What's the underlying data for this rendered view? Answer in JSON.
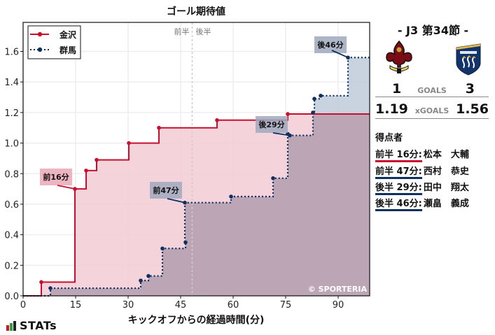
{
  "chart_title": "ゴール期待値",
  "half_labels": {
    "first": "前半",
    "second": "後半"
  },
  "watermark": "© SPORTERIA",
  "xlabel": "キックオフからの経過時間(分)",
  "brand": "STATs",
  "match": {
    "round": "- J3 第34節 -",
    "home": {
      "name": "金沢",
      "crest": "kanazawa-crest",
      "goals": "1",
      "xg": "1.19",
      "color": "#c8102e"
    },
    "away": {
      "name": "群馬",
      "crest": "gunma-crest",
      "goals": "3",
      "xg": "1.56",
      "color": "#0d3060"
    },
    "goals_label": "GOALS",
    "xgoals_label": "xGOALS"
  },
  "scorers": {
    "title": "得点者",
    "list": [
      {
        "minute": "前半 16分:",
        "name": "松本　大輔",
        "team": "home"
      },
      {
        "minute": "前半 47分:",
        "name": "西村　恭史",
        "team": "away"
      },
      {
        "minute": "後半 29分:",
        "name": "田中　翔太",
        "team": "away"
      },
      {
        "minute": "後半 46分:",
        "name": "瀬畠　義成",
        "team": "away"
      }
    ]
  },
  "chart_data": {
    "type": "line",
    "step": true,
    "title": "ゴール期待値",
    "xlabel": "キックオフからの経過時間(分)",
    "ylabel": "",
    "xlim": [
      0,
      99
    ],
    "ylim": [
      0,
      1.79
    ],
    "xticks": [
      0,
      15,
      30,
      45,
      60,
      75,
      90
    ],
    "yticks": [
      0.0,
      0.2,
      0.4,
      0.6,
      0.8,
      1.0,
      1.2,
      1.4,
      1.6
    ],
    "grid": true,
    "legend": {
      "position": "upper left",
      "entries": [
        "金沢",
        "群馬"
      ]
    },
    "halftime_line_x": 48.3,
    "series": [
      {
        "name": "金沢",
        "color": "#c8102e",
        "style": "solid",
        "fill": "#f2cbd3",
        "x": [
          0,
          5.2,
          14.8,
          18.0,
          21.0,
          30.2,
          38.8,
          55.4,
          75.6,
          99
        ],
        "y": [
          0,
          0.09,
          0.7,
          0.82,
          0.89,
          1.0,
          1.1,
          1.15,
          1.19,
          1.19
        ]
      },
      {
        "name": "群馬",
        "color": "#0d3060",
        "style": "dotted",
        "fill": "#b7c4d4",
        "x": [
          0,
          7.8,
          33.6,
          35.8,
          39.8,
          46.4,
          46.2,
          59.4,
          71.4,
          75.6,
          76.2,
          82.8,
          83.2,
          85.0,
          92.8,
          99
        ],
        "y": [
          0,
          0.05,
          0.1,
          0.13,
          0.31,
          0.35,
          0.61,
          0.65,
          0.77,
          1.06,
          1.05,
          1.2,
          1.29,
          1.31,
          1.56,
          1.56
        ]
      }
    ],
    "annotations": [
      {
        "text": "前16分",
        "x": 14.8,
        "y": 0.7,
        "team": "金沢"
      },
      {
        "text": "前47分",
        "x": 46.2,
        "y": 0.61,
        "team": "群馬"
      },
      {
        "text": "後29分",
        "x": 76.2,
        "y": 1.05,
        "team": "群馬"
      },
      {
        "text": "後46分",
        "x": 92.8,
        "y": 1.56,
        "team": "群馬"
      }
    ]
  }
}
